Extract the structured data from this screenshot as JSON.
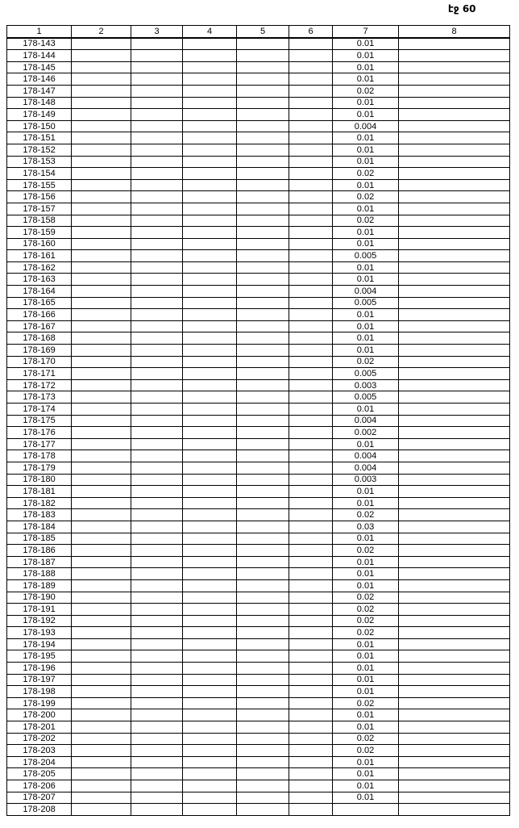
{
  "page_number": "էջ 60",
  "table": {
    "headers": [
      "1",
      "2",
      "3",
      "4",
      "5",
      "6",
      "7",
      "8"
    ],
    "rows": [
      [
        "178-143",
        "0.01"
      ],
      [
        "178-144",
        "0.01"
      ],
      [
        "178-145",
        "0.01"
      ],
      [
        "178-146",
        "0.01"
      ],
      [
        "178-147",
        "0.02"
      ],
      [
        "178-148",
        "0.01"
      ],
      [
        "178-149",
        "0.01"
      ],
      [
        "178-150",
        "0.004"
      ],
      [
        "178-151",
        "0.01"
      ],
      [
        "178-152",
        "0.01"
      ],
      [
        "178-153",
        "0.01"
      ],
      [
        "178-154",
        "0.02"
      ],
      [
        "178-155",
        "0.01"
      ],
      [
        "178-156",
        "0.02"
      ],
      [
        "178-157",
        "0.01"
      ],
      [
        "178-158",
        "0.02"
      ],
      [
        "178-159",
        "0.01"
      ],
      [
        "178-160",
        "0.01"
      ],
      [
        "178-161",
        "0.005"
      ],
      [
        "178-162",
        "0.01"
      ],
      [
        "178-163",
        "0.01"
      ],
      [
        "178-164",
        "0.004"
      ],
      [
        "178-165",
        "0.005"
      ],
      [
        "178-166",
        "0.01"
      ],
      [
        "178-167",
        "0.01"
      ],
      [
        "178-168",
        "0.01"
      ],
      [
        "178-169",
        "0.01"
      ],
      [
        "178-170",
        "0.02"
      ],
      [
        "178-171",
        "0.005"
      ],
      [
        "178-172",
        "0.003"
      ],
      [
        "178-173",
        "0.005"
      ],
      [
        "178-174",
        "0.01"
      ],
      [
        "178-175",
        "0.004"
      ],
      [
        "178-176",
        "0.002"
      ],
      [
        "178-177",
        "0.01"
      ],
      [
        "178-178",
        "0.004"
      ],
      [
        "178-179",
        "0.004"
      ],
      [
        "178-180",
        "0.003"
      ],
      [
        "178-181",
        "0.01"
      ],
      [
        "178-182",
        "0.01"
      ],
      [
        "178-183",
        "0.02"
      ],
      [
        "178-184",
        "0.03"
      ],
      [
        "178-185",
        "0.01"
      ],
      [
        "178-186",
        "0.02"
      ],
      [
        "178-187",
        "0.01"
      ],
      [
        "178-188",
        "0.01"
      ],
      [
        "178-189",
        "0.01"
      ],
      [
        "178-190",
        "0.02"
      ],
      [
        "178-191",
        "0.02"
      ],
      [
        "178-192",
        "0.02"
      ],
      [
        "178-193",
        "0.02"
      ],
      [
        "178-194",
        "0.01"
      ],
      [
        "178-195",
        "0.01"
      ],
      [
        "178-196",
        "0.01"
      ],
      [
        "178-197",
        "0.01"
      ],
      [
        "178-198",
        "0.01"
      ],
      [
        "178-199",
        "0.02"
      ],
      [
        "178-200",
        "0.01"
      ],
      [
        "178-201",
        "0.01"
      ],
      [
        "178-202",
        "0.02"
      ],
      [
        "178-203",
        "0.02"
      ],
      [
        "178-204",
        "0.01"
      ],
      [
        "178-205",
        "0.01"
      ],
      [
        "178-206",
        "0.01"
      ],
      [
        "178-207",
        "0.01"
      ],
      [
        "178-208",
        ""
      ]
    ]
  }
}
